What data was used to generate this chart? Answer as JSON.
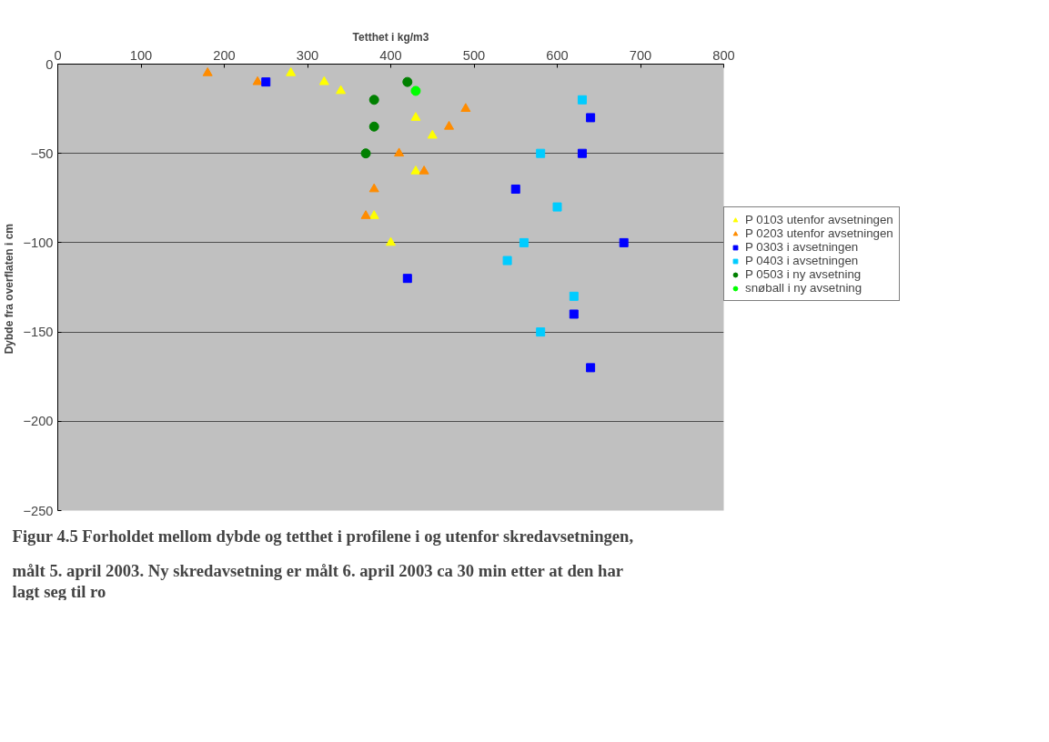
{
  "chart_data": {
    "type": "scatter",
    "xlabel": "Tetthet i kg/m3",
    "ylabel": "Dybde fra overflaten  i cm",
    "xlim": [
      0,
      800
    ],
    "xticks": [
      0,
      100,
      200,
      300,
      400,
      500,
      600,
      700,
      800
    ],
    "ylim": [
      -250,
      0
    ],
    "yticks": [
      -250,
      -200,
      -150,
      -100,
      -50,
      0
    ],
    "grid": "y",
    "legend": "right",
    "series": [
      {
        "name": "P 0103 utenfor avsetningen",
        "color": "#ffff00",
        "marker": "triangle",
        "x": [
          280,
          320,
          340,
          430,
          450,
          430,
          380,
          400
        ],
        "values": [
          -5,
          -10,
          -15,
          -30,
          -40,
          -60,
          -85,
          -100
        ]
      },
      {
        "name": "P 0203 utenfor avsetningen",
        "color": "#ff8c00",
        "marker": "triangle",
        "x": [
          180,
          240,
          490,
          470,
          410,
          440,
          380,
          370
        ],
        "values": [
          -5,
          -10,
          -25,
          -35,
          -50,
          -60,
          -70,
          -85
        ]
      },
      {
        "name": "P 0303 i avsetningen",
        "color": "#0000ff",
        "marker": "square",
        "x": [
          250,
          640,
          630,
          550,
          680,
          420,
          620,
          640
        ],
        "values": [
          -10,
          -30,
          -50,
          -70,
          -100,
          -120,
          -140,
          -170
        ]
      },
      {
        "name": "P 0403 i avsetningen",
        "color": "#00ccff",
        "marker": "square",
        "x": [
          630,
          580,
          600,
          560,
          540,
          620,
          580
        ],
        "values": [
          -20,
          -50,
          -80,
          -100,
          -110,
          -130,
          -150
        ]
      },
      {
        "name": "P 0503 i ny avsetning",
        "color": "#008000",
        "marker": "circle",
        "x": [
          420,
          380,
          380,
          370
        ],
        "values": [
          -10,
          -20,
          -35,
          -50
        ]
      },
      {
        "name": "snøball i ny avsetning",
        "color": "#00ff00",
        "marker": "circle",
        "x": [
          430
        ],
        "values": [
          -15
        ]
      }
    ],
    "annotations": [
      "Figur 4.5 Forholdet mellom dybde og tetthet i profilene i og utenfor skredavsetningen, målt 5. april 2003. Ny skredavsetning er målt 6. april 2003 ca 30 min etter at den har lagt seg til ro"
    ]
  }
}
